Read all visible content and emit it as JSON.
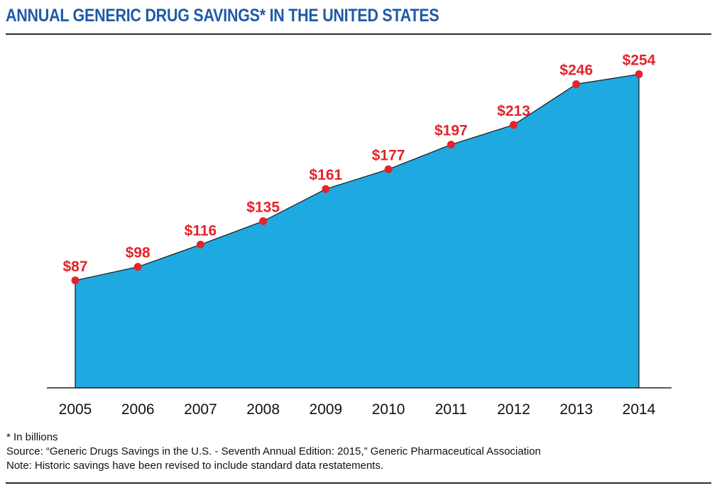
{
  "header": {
    "title": "ANNUAL GENERIC DRUG SAVINGS* IN THE UNITED STATES"
  },
  "footnotes": {
    "unit_note": "* In billions",
    "source": "Source: “Generic Drugs Savings in the U.S. - Seventh Annual Edition: 2015,” Generic Pharmaceutical Association",
    "note": "Note: Historic savings have been revised to include standard data restatements."
  },
  "colors": {
    "title": "#1f5aa6",
    "area_fill": "#1eaae1",
    "point": "#e3242b",
    "label": "#e3242b",
    "axis": "#222222"
  },
  "chart_data": {
    "type": "area",
    "x": [
      "2005",
      "2006",
      "2007",
      "2008",
      "2009",
      "2010",
      "2011",
      "2012",
      "2013",
      "2014"
    ],
    "values": [
      87,
      98,
      116,
      135,
      161,
      177,
      197,
      213,
      246,
      254
    ],
    "data_labels": [
      "$87",
      "$98",
      "$116",
      "$135",
      "$161",
      "$177",
      "$197",
      "$213",
      "$246",
      "$254"
    ],
    "ylim": [
      0,
      271
    ],
    "grid": false,
    "legend": "none"
  }
}
